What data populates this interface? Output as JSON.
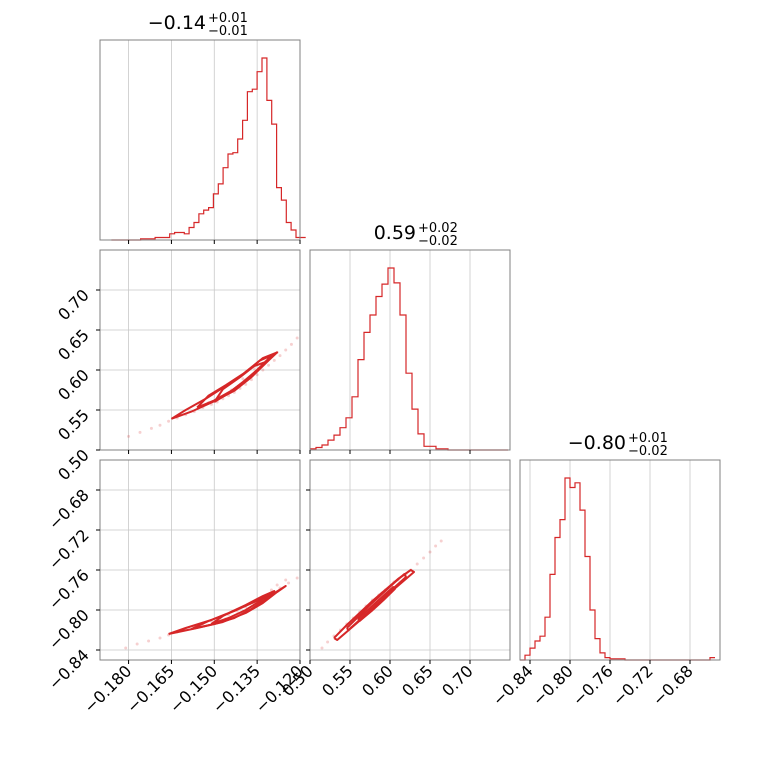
{
  "chart_data": {
    "type": "corner",
    "color": "#d62728",
    "grid": true,
    "parameters": [
      {
        "title": "−0.14",
        "plus": "+0.01",
        "minus": "−0.01",
        "range": [
          -0.19,
          -0.12
        ]
      },
      {
        "title": "0.59",
        "plus": "+0.02",
        "minus": "−0.02",
        "range": [
          0.5,
          0.75
        ]
      },
      {
        "title": "−0.80",
        "plus": "+0.01",
        "minus": "−0.02",
        "range": [
          -0.85,
          -0.65
        ]
      }
    ],
    "ticks": {
      "x0": {
        "values": [
          -0.18,
          -0.165,
          -0.15,
          -0.135,
          -0.12
        ],
        "labels": [
          "−0.180",
          "−0.165",
          "−0.150",
          "−0.135",
          "−0.120"
        ]
      },
      "x1": {
        "values": [
          0.5,
          0.55,
          0.6,
          0.65,
          0.7
        ],
        "labels": [
          "0.50",
          "0.55",
          "0.60",
          "0.65",
          "0.70"
        ]
      },
      "x2": {
        "values": [
          -0.84,
          -0.8,
          -0.76,
          -0.72,
          -0.68
        ],
        "labels": [
          "−0.84",
          "−0.80",
          "−0.76",
          "−0.72",
          "−0.68"
        ]
      },
      "y1": {
        "values": [
          0.5,
          0.55,
          0.6,
          0.65,
          0.7
        ],
        "labels": [
          "0.50",
          "0.55",
          "0.60",
          "0.65",
          "0.70"
        ]
      },
      "y2": {
        "values": [
          -0.84,
          -0.8,
          -0.76,
          -0.72,
          -0.68
        ],
        "labels": [
          "−0.84",
          "−0.80",
          "−0.76",
          "−0.72",
          "−0.68"
        ]
      }
    },
    "histograms": [
      {
        "param": 0,
        "bins": [
          -0.186,
          -0.1843,
          -0.1826,
          -0.1809,
          -0.1792,
          -0.1775,
          -0.1758,
          -0.1741,
          -0.1724,
          -0.1707,
          -0.169,
          -0.1673,
          -0.1656,
          -0.1639,
          -0.1622,
          -0.1605,
          -0.1588,
          -0.1571,
          -0.1554,
          -0.1537,
          -0.152,
          -0.1503,
          -0.1486,
          -0.1469,
          -0.1452,
          -0.1435,
          -0.1418,
          -0.1401,
          -0.1384,
          -0.1367,
          -0.135,
          -0.1333,
          -0.1316,
          -0.1299,
          -0.1282,
          -0.1265,
          -0.1248,
          -0.1231,
          -0.1214,
          -0.1197
        ],
        "counts": [
          0,
          0,
          0,
          0,
          0,
          0,
          1,
          1,
          1,
          2,
          2,
          2,
          5,
          6,
          6,
          5,
          10,
          14,
          21,
          24,
          26,
          37,
          45,
          58,
          69,
          70,
          81,
          96,
          119,
          121,
          135,
          146,
          112,
          93,
          42,
          32,
          14,
          8,
          2,
          2
        ]
      },
      {
        "param": 1,
        "bins": [
          0.5,
          0.5075,
          0.515,
          0.5225,
          0.53,
          0.5375,
          0.545,
          0.5525,
          0.56,
          0.5675,
          0.575,
          0.5825,
          0.59,
          0.5975,
          0.605,
          0.6125,
          0.62,
          0.6275,
          0.635,
          0.6425,
          0.65,
          0.6575,
          0.665,
          0.6725,
          0.68,
          0.6875,
          0.695,
          0.7025,
          0.71,
          0.7175,
          0.725,
          0.7325,
          0.74
        ],
        "counts": [
          1,
          2,
          4,
          8,
          12,
          18,
          26,
          43,
          73,
          95,
          109,
          124,
          134,
          147,
          135,
          109,
          62,
          33,
          13,
          3,
          3,
          1,
          1,
          0,
          0,
          0,
          0,
          0,
          0,
          0,
          0,
          0,
          0
        ]
      },
      {
        "param": 2,
        "bins": [
          -0.85,
          -0.845,
          -0.84,
          -0.835,
          -0.83,
          -0.825,
          -0.82,
          -0.815,
          -0.81,
          -0.805,
          -0.8,
          -0.795,
          -0.79,
          -0.785,
          -0.78,
          -0.775,
          -0.77,
          -0.765,
          -0.76,
          -0.755,
          -0.75,
          -0.745,
          -0.74,
          -0.735,
          -0.73,
          -0.725,
          -0.72,
          -0.715,
          -0.71,
          -0.705,
          -0.7,
          -0.695,
          -0.69,
          -0.685,
          -0.68,
          -0.675,
          -0.67,
          -0.665,
          -0.66
        ],
        "counts": [
          0,
          4,
          10,
          16,
          20,
          36,
          72,
          103,
          118,
          153,
          145,
          149,
          126,
          87,
          42,
          18,
          6,
          2,
          1,
          1,
          1,
          0,
          0,
          0,
          0,
          0,
          0,
          0,
          0,
          0,
          0,
          0,
          0,
          0,
          0,
          0,
          0,
          0,
          2
        ]
      }
    ],
    "scatter": [
      {
        "x": 0,
        "y": 1,
        "points": [
          [
            -0.18,
            0.517
          ],
          [
            -0.176,
            0.522
          ],
          [
            -0.172,
            0.527
          ],
          [
            -0.169,
            0.531
          ],
          [
            -0.166,
            0.536
          ],
          [
            -0.163,
            0.54
          ],
          [
            -0.16,
            0.544
          ],
          [
            -0.157,
            0.548
          ],
          [
            -0.154,
            0.553
          ],
          [
            -0.151,
            0.557
          ],
          [
            -0.149,
            0.56
          ],
          [
            -0.147,
            0.564
          ],
          [
            -0.145,
            0.568
          ],
          [
            -0.143,
            0.572
          ],
          [
            -0.141,
            0.577
          ],
          [
            -0.139,
            0.582
          ],
          [
            -0.137,
            0.588
          ],
          [
            -0.135,
            0.594
          ],
          [
            -0.133,
            0.6
          ],
          [
            -0.131,
            0.606
          ],
          [
            -0.129,
            0.612
          ],
          [
            -0.127,
            0.618
          ],
          [
            -0.125,
            0.625
          ],
          [
            -0.123,
            0.632
          ],
          [
            -0.121,
            0.64
          ],
          [
            -0.14,
            0.589
          ],
          [
            -0.136,
            0.602
          ],
          [
            -0.144,
            0.575
          ],
          [
            -0.148,
            0.567
          ],
          [
            -0.152,
            0.559
          ],
          [
            -0.132,
            0.611
          ],
          [
            -0.128,
            0.622
          ]
        ],
        "contours": [
          [
            [
              -0.165,
              0.539
            ],
            [
              -0.158,
              0.548
            ],
            [
              -0.15,
              0.561
            ],
            [
              -0.143,
              0.574
            ],
            [
              -0.137,
              0.591
            ],
            [
              -0.131,
              0.612
            ],
            [
              -0.128,
              0.622
            ],
            [
              -0.133,
              0.615
            ],
            [
              -0.139,
              0.597
            ],
            [
              -0.146,
              0.58
            ],
            [
              -0.153,
              0.564
            ],
            [
              -0.16,
              0.55
            ],
            [
              -0.165,
              0.539
            ]
          ],
          [
            [
              -0.156,
              0.553
            ],
            [
              -0.15,
              0.562
            ],
            [
              -0.144,
              0.574
            ],
            [
              -0.138,
              0.59
            ],
            [
              -0.133,
              0.607
            ],
            [
              -0.13,
              0.618
            ],
            [
              -0.134,
              0.612
            ],
            [
              -0.14,
              0.595
            ],
            [
              -0.146,
              0.581
            ],
            [
              -0.152,
              0.568
            ],
            [
              -0.156,
              0.553
            ]
          ],
          [
            [
              -0.15,
              0.56
            ],
            [
              -0.145,
              0.571
            ],
            [
              -0.14,
              0.585
            ],
            [
              -0.135,
              0.6
            ],
            [
              -0.132,
              0.61
            ],
            [
              -0.136,
              0.605
            ],
            [
              -0.141,
              0.591
            ],
            [
              -0.147,
              0.576
            ],
            [
              -0.15,
              0.56
            ]
          ]
        ]
      },
      {
        "x": 0,
        "y": 2,
        "points": [
          [
            -0.181,
            -0.838
          ],
          [
            -0.177,
            -0.834
          ],
          [
            -0.173,
            -0.831
          ],
          [
            -0.169,
            -0.828
          ],
          [
            -0.166,
            -0.825
          ],
          [
            -0.163,
            -0.822
          ],
          [
            -0.16,
            -0.819
          ],
          [
            -0.157,
            -0.817
          ],
          [
            -0.154,
            -0.814
          ],
          [
            -0.151,
            -0.811
          ],
          [
            -0.148,
            -0.808
          ],
          [
            -0.145,
            -0.805
          ],
          [
            -0.142,
            -0.801
          ],
          [
            -0.139,
            -0.797
          ],
          [
            -0.136,
            -0.793
          ],
          [
            -0.133,
            -0.788
          ],
          [
            -0.13,
            -0.783
          ],
          [
            -0.127,
            -0.778
          ],
          [
            -0.124,
            -0.773
          ],
          [
            -0.121,
            -0.768
          ],
          [
            -0.135,
            -0.79
          ],
          [
            -0.13,
            -0.78
          ],
          [
            -0.128,
            -0.775
          ],
          [
            -0.125,
            -0.77
          ],
          [
            -0.146,
            -0.809
          ],
          [
            -0.149,
            -0.812
          ]
        ],
        "contours": [
          [
            [
              -0.166,
              -0.824
            ],
            [
              -0.156,
              -0.818
            ],
            [
              -0.147,
              -0.812
            ],
            [
              -0.139,
              -0.803
            ],
            [
              -0.133,
              -0.793
            ],
            [
              -0.128,
              -0.782
            ],
            [
              -0.125,
              -0.776
            ],
            [
              -0.13,
              -0.785
            ],
            [
              -0.136,
              -0.792
            ],
            [
              -0.143,
              -0.801
            ],
            [
              -0.151,
              -0.81
            ],
            [
              -0.16,
              -0.818
            ],
            [
              -0.166,
              -0.824
            ]
          ],
          [
            [
              -0.158,
              -0.819
            ],
            [
              -0.15,
              -0.814
            ],
            [
              -0.143,
              -0.808
            ],
            [
              -0.137,
              -0.799
            ],
            [
              -0.132,
              -0.789
            ],
            [
              -0.129,
              -0.781
            ],
            [
              -0.133,
              -0.786
            ],
            [
              -0.139,
              -0.795
            ],
            [
              -0.145,
              -0.803
            ],
            [
              -0.152,
              -0.811
            ],
            [
              -0.158,
              -0.819
            ]
          ],
          [
            [
              -0.151,
              -0.814
            ],
            [
              -0.145,
              -0.808
            ],
            [
              -0.139,
              -0.8
            ],
            [
              -0.134,
              -0.791
            ],
            [
              -0.131,
              -0.784
            ],
            [
              -0.135,
              -0.79
            ],
            [
              -0.141,
              -0.798
            ],
            [
              -0.147,
              -0.806
            ],
            [
              -0.151,
              -0.814
            ]
          ]
        ]
      },
      {
        "x": 1,
        "y": 2,
        "points": [
          [
            0.515,
            -0.838
          ],
          [
            0.522,
            -0.832
          ],
          [
            0.53,
            -0.826
          ],
          [
            0.538,
            -0.82
          ],
          [
            0.546,
            -0.814
          ],
          [
            0.554,
            -0.808
          ],
          [
            0.562,
            -0.802
          ],
          [
            0.57,
            -0.796
          ],
          [
            0.578,
            -0.79
          ],
          [
            0.586,
            -0.785
          ],
          [
            0.594,
            -0.78
          ],
          [
            0.602,
            -0.775
          ],
          [
            0.61,
            -0.77
          ],
          [
            0.618,
            -0.765
          ],
          [
            0.626,
            -0.76
          ],
          [
            0.634,
            -0.754
          ],
          [
            0.642,
            -0.748
          ],
          [
            0.65,
            -0.742
          ],
          [
            0.657,
            -0.736
          ],
          [
            0.664,
            -0.731
          ],
          [
            0.56,
            -0.805
          ],
          [
            0.575,
            -0.795
          ],
          [
            0.59,
            -0.783
          ],
          [
            0.605,
            -0.772
          ],
          [
            0.62,
            -0.764
          ]
        ],
        "contours": [
          [
            [
              0.53,
              -0.828
            ],
            [
              0.546,
              -0.815
            ],
            [
              0.562,
              -0.803
            ],
            [
              0.578,
              -0.791
            ],
            [
              0.594,
              -0.78
            ],
            [
              0.61,
              -0.769
            ],
            [
              0.626,
              -0.76
            ],
            [
              0.63,
              -0.762
            ],
            [
              0.614,
              -0.773
            ],
            [
              0.598,
              -0.784
            ],
            [
              0.582,
              -0.796
            ],
            [
              0.566,
              -0.808
            ],
            [
              0.55,
              -0.819
            ],
            [
              0.534,
              -0.83
            ],
            [
              0.53,
              -0.828
            ]
          ],
          [
            [
              0.546,
              -0.818
            ],
            [
              0.56,
              -0.807
            ],
            [
              0.575,
              -0.795
            ],
            [
              0.59,
              -0.784
            ],
            [
              0.605,
              -0.773
            ],
            [
              0.618,
              -0.764
            ],
            [
              0.62,
              -0.767
            ],
            [
              0.606,
              -0.777
            ],
            [
              0.592,
              -0.788
            ],
            [
              0.577,
              -0.799
            ],
            [
              0.562,
              -0.81
            ],
            [
              0.548,
              -0.82
            ],
            [
              0.546,
              -0.818
            ]
          ],
          [
            [
              0.56,
              -0.809
            ],
            [
              0.575,
              -0.798
            ],
            [
              0.59,
              -0.787
            ],
            [
              0.604,
              -0.777
            ],
            [
              0.606,
              -0.779
            ],
            [
              0.592,
              -0.79
            ],
            [
              0.577,
              -0.801
            ],
            [
              0.562,
              -0.811
            ],
            [
              0.56,
              -0.809
            ]
          ]
        ]
      }
    ]
  }
}
